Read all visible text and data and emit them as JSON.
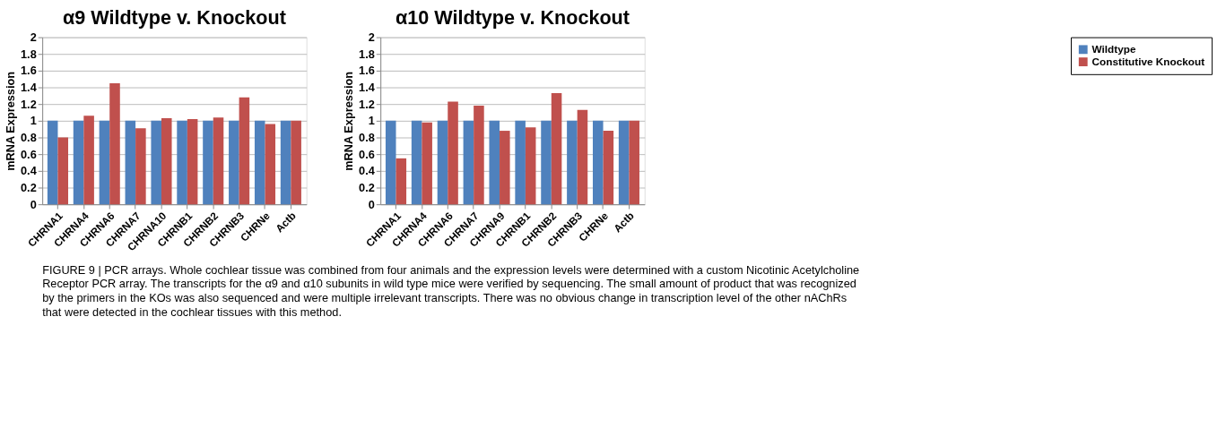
{
  "chart_data": [
    {
      "type": "bar",
      "title": "α9 Wildtype v. Knockout",
      "ylabel": "mRNA Expression",
      "categories": [
        "CHRNA1",
        "CHRNA4",
        "CHRNA6",
        "CHRNA7",
        "CHRNA10",
        "CHRNB1",
        "CHRNB2",
        "CHRNB3",
        "CHRNe",
        "Actb"
      ],
      "series": [
        {
          "name": "Wildtype",
          "color": "#4f81bd",
          "values": [
            1,
            1,
            1,
            1,
            1,
            1,
            1,
            1,
            1,
            1
          ]
        },
        {
          "name": "Constitutive Knockout",
          "color": "#c0504d",
          "values": [
            0.8,
            1.06,
            1.45,
            0.91,
            1.03,
            1.02,
            1.04,
            1.28,
            0.96,
            1.0
          ]
        }
      ],
      "ylim": [
        0,
        2
      ],
      "yticks": [
        0,
        0.2,
        0.4,
        0.6,
        0.8,
        1,
        1.2,
        1.4,
        1.6,
        1.8,
        2
      ],
      "grid": "y",
      "legend": "right",
      "annotations": [
        "FIGURE 9 | PCR arrays. Whole cochlear tissue was combined from four animals and the expression levels were determined with a custom Nicotinic Acetylcholine Receptor PCR array. The transcripts for the α9 and α10 subunits in wild type mice were verified by sequencing. The small amount of product that was recognized by the primers in the KOs was also sequenced and were multiple irrelevant transcripts. There was no obvious change in transcription level of the other nAChRs that were detected in the cochlear tissues with this method."
      ]
    },
    {
      "type": "bar",
      "title": "α10 Wildtype v. Knockout",
      "ylabel": "mRNA Expression",
      "categories": [
        "CHRNA1",
        "CHRNA4",
        "CHRNA6",
        "CHRNA7",
        "CHRNA9",
        "CHRNB1",
        "CHRNB2",
        "CHRNB3",
        "CHRNe",
        "Actb"
      ],
      "series": [
        {
          "name": "Wildtype",
          "color": "#4f81bd",
          "values": [
            1,
            1,
            1,
            1,
            1,
            1,
            1,
            1,
            1,
            1
          ]
        },
        {
          "name": "Constitutive Knockout",
          "color": "#c0504d",
          "values": [
            0.55,
            0.98,
            1.23,
            1.18,
            0.88,
            0.92,
            1.33,
            1.13,
            0.88,
            1.0
          ]
        }
      ],
      "ylim": [
        0,
        2
      ],
      "yticks": [
        0,
        0.2,
        0.4,
        0.6,
        0.8,
        1,
        1.2,
        1.4,
        1.6,
        1.8,
        2
      ],
      "grid": "y",
      "legend": "right"
    }
  ]
}
